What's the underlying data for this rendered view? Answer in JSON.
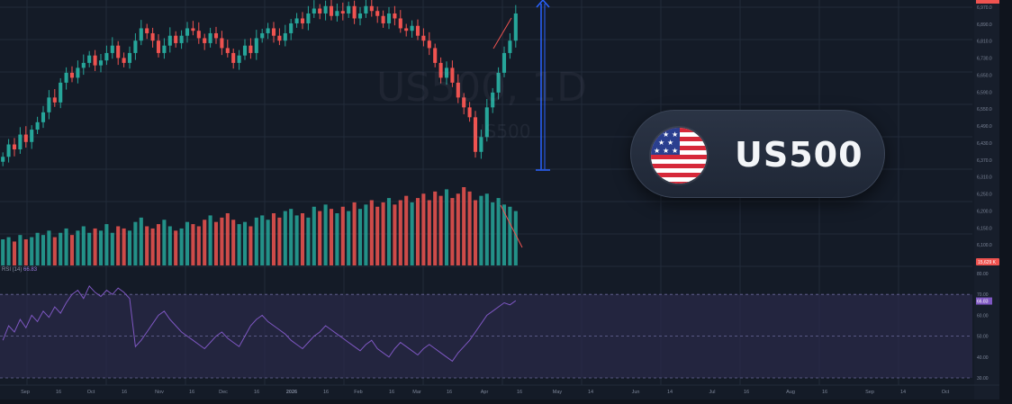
{
  "chart_data": [
    {
      "type": "candlestick",
      "title": "US500, 1D",
      "watermark_title": "US500, 1D",
      "watermark_sub": "US500",
      "price_axis_ticks": [
        "6,970.0",
        "6,890.0",
        "6,810.0",
        "6,730.0",
        "6,650.0",
        "6,590.0",
        "6,550.0",
        "6,490.0",
        "6,430.0",
        "6,370.0",
        "6,310.0",
        "6,250.0",
        "6,200.0",
        "6,150.0",
        "6,100.0",
        "6,067.0"
      ],
      "ylim": [
        6067,
        7000
      ],
      "last_price_label": "",
      "volume_label": "15,629 K",
      "x_ticks": [
        "Sep",
        "16",
        "Oct",
        "16",
        "Nov",
        "16",
        "Dec",
        "16",
        "2026",
        "16",
        "Feb",
        "16",
        "Mar",
        "16",
        "Apr",
        "16",
        "May",
        "14",
        "Jun",
        "14",
        "Jul",
        "16",
        "Aug",
        "16",
        "Sep",
        "14",
        "Oct"
      ],
      "closes": [
        6380,
        6430,
        6410,
        6470,
        6440,
        6490,
        6520,
        6560,
        6620,
        6600,
        6680,
        6720,
        6700,
        6740,
        6760,
        6790,
        6750,
        6770,
        6800,
        6830,
        6780,
        6760,
        6800,
        6850,
        6900,
        6880,
        6850,
        6800,
        6830,
        6870,
        6840,
        6870,
        6900,
        6890,
        6860,
        6840,
        6880,
        6860,
        6820,
        6800,
        6760,
        6790,
        6830,
        6800,
        6860,
        6880,
        6900,
        6870,
        6850,
        6880,
        6920,
        6940,
        6920,
        6960,
        6980,
        6960,
        6990,
        6950,
        6970,
        6960,
        6990,
        6940,
        6960,
        6990,
        6970,
        6950,
        6920,
        6960,
        6940,
        6900,
        6890,
        6910,
        6870,
        6850,
        6820,
        6760,
        6700,
        6740,
        6680,
        6620,
        6580,
        6540,
        6400,
        6460,
        6580,
        6640,
        6720,
        6800,
        6850,
        6960
      ],
      "volume": [
        12,
        13,
        11,
        14,
        12,
        13,
        15,
        14,
        16,
        13,
        15,
        17,
        14,
        16,
        18,
        15,
        17,
        16,
        19,
        15,
        18,
        17,
        16,
        20,
        22,
        18,
        17,
        19,
        21,
        18,
        16,
        17,
        20,
        19,
        18,
        21,
        23,
        20,
        22,
        24,
        21,
        19,
        20,
        18,
        22,
        23,
        21,
        24,
        22,
        25,
        26,
        23,
        24,
        22,
        27,
        25,
        28,
        26,
        24,
        27,
        25,
        29,
        26,
        28,
        30,
        27,
        29,
        31,
        28,
        30,
        32,
        29,
        31,
        33,
        30,
        34,
        32,
        35,
        31,
        33,
        36,
        34,
        30,
        32,
        33,
        29,
        31,
        28,
        27,
        25
      ],
      "arrow_annotation": "up"
    },
    {
      "type": "line",
      "title": "RSI (14)",
      "current_value": "66.83",
      "ylim": [
        30,
        80
      ],
      "levels": [
        70,
        50,
        30
      ],
      "y_ticks": [
        "80.00",
        "70.00",
        "60.00",
        "50.00",
        "40.00",
        "30.00"
      ],
      "values": [
        48,
        55,
        52,
        58,
        54,
        60,
        57,
        62,
        59,
        64,
        61,
        66,
        70,
        72,
        68,
        74,
        71,
        69,
        72,
        70,
        73,
        71,
        68,
        45,
        48,
        52,
        56,
        60,
        62,
        58,
        55,
        52,
        50,
        48,
        46,
        44,
        47,
        50,
        52,
        49,
        47,
        45,
        50,
        55,
        58,
        60,
        57,
        55,
        53,
        51,
        48,
        46,
        44,
        47,
        50,
        52,
        55,
        53,
        51,
        49,
        47,
        45,
        43,
        46,
        48,
        44,
        42,
        40,
        44,
        47,
        45,
        43,
        41,
        44,
        46,
        44,
        42,
        40,
        38,
        42,
        45,
        48,
        52,
        56,
        60,
        62,
        64,
        66,
        65,
        67
      ]
    }
  ],
  "badge": {
    "title": "US500",
    "flag_icon": "us-flag-icon"
  },
  "rsi_header": {
    "name": "RSI (14)",
    "value": "66.83"
  },
  "colors": {
    "background": "#141b27",
    "grid": "#222b3a",
    "bull": "#26a69a",
    "bear": "#ef5350",
    "rsi_line": "#7e57c2",
    "rsi_band": "#2a2a4a",
    "arrow": "#2962ff"
  }
}
